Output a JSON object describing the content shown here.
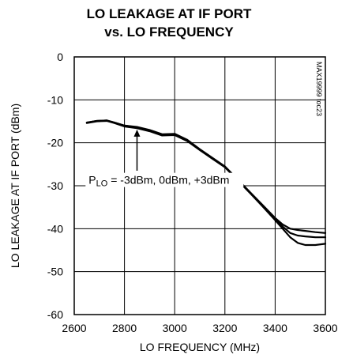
{
  "chart_data": {
    "type": "line",
    "title": [
      "LO LEAKAGE AT IF PORT",
      "vs. LO FREQUENCY"
    ],
    "xlabel": "LO FREQUENCY (MHz)",
    "ylabel": "LO LEAKAGE AT IF PORT (dBm)",
    "xlim": [
      2600,
      3600
    ],
    "ylim": [
      -60,
      0
    ],
    "xticks": [
      "2600",
      "2800",
      "3000",
      "3200",
      "3400",
      "3600"
    ],
    "yticks": [
      "0",
      "-10",
      "-20",
      "-30",
      "-40",
      "-50",
      "-60"
    ],
    "grid": true,
    "legend": "none",
    "annotation": {
      "text": "P_LO = -3dBm, 0dBm, +3dBm",
      "main": "P",
      "sub": "LO",
      "rest": " = -3dBm, 0dBm, +3dBm"
    },
    "watermark": "MAX19999 toc23",
    "series": [
      {
        "label": "PLO = -3dBm",
        "x": [
          2650,
          2690,
          2730,
          2760,
          2800,
          2850,
          2900,
          2950,
          3000,
          3050,
          3100,
          3150,
          3200,
          3250,
          3300,
          3350,
          3400,
          3430,
          3460,
          3490,
          3520,
          3560,
          3600
        ],
        "y": [
          -15.3,
          -14.9,
          -14.8,
          -15.3,
          -16.0,
          -16.3,
          -17.0,
          -18.0,
          -17.9,
          -19.3,
          -21.5,
          -23.5,
          -25.5,
          -28.5,
          -31.5,
          -34.5,
          -37.5,
          -39.0,
          -40.0,
          -40.3,
          -40.5,
          -40.8,
          -41.0
        ]
      },
      {
        "label": "PLO = 0dBm",
        "x": [
          2650,
          2690,
          2730,
          2760,
          2800,
          2850,
          2900,
          2950,
          3000,
          3050,
          3100,
          3150,
          3200,
          3250,
          3300,
          3350,
          3400,
          3430,
          3460,
          3490,
          3520,
          3560,
          3600
        ],
        "y": [
          -15.3,
          -14.9,
          -14.8,
          -15.3,
          -16.0,
          -16.4,
          -17.1,
          -18.1,
          -18.0,
          -19.4,
          -21.6,
          -23.6,
          -25.6,
          -28.6,
          -31.6,
          -34.6,
          -37.8,
          -39.5,
          -41.0,
          -41.6,
          -41.8,
          -42.0,
          -42.0
        ]
      },
      {
        "label": "PLO = +3dBm",
        "x": [
          2650,
          2690,
          2730,
          2760,
          2800,
          2850,
          2900,
          2950,
          3000,
          3050,
          3100,
          3150,
          3200,
          3250,
          3300,
          3350,
          3400,
          3430,
          3460,
          3490,
          3520,
          3560,
          3600
        ],
        "y": [
          -15.4,
          -15.0,
          -14.9,
          -15.4,
          -16.2,
          -16.6,
          -17.3,
          -18.3,
          -18.2,
          -19.6,
          -21.7,
          -23.7,
          -25.7,
          -28.7,
          -31.7,
          -34.8,
          -38.0,
          -40.0,
          -42.0,
          -43.3,
          -43.8,
          -43.8,
          -43.5
        ]
      }
    ]
  }
}
